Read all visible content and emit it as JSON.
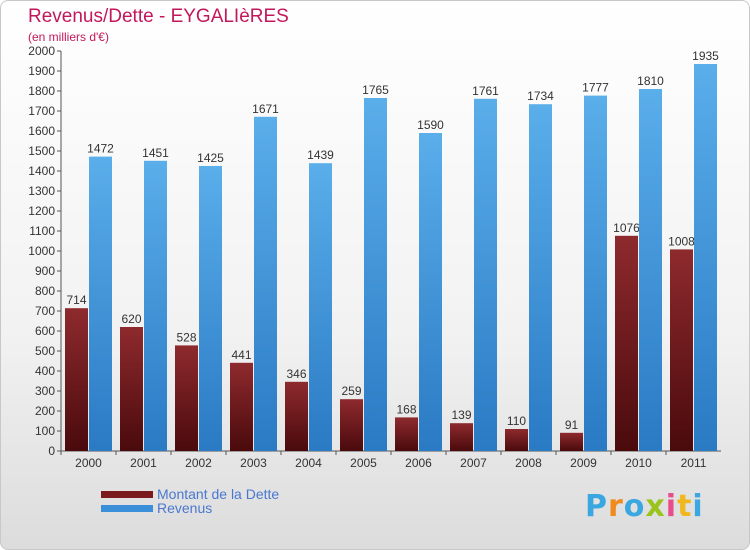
{
  "chart": {
    "title": "Revenus/Dette - EYGALIèRES",
    "subtitle": "(en milliers d'€)"
  },
  "chart_data": {
    "type": "bar",
    "categories": [
      "2000",
      "2001",
      "2002",
      "2003",
      "2004",
      "2005",
      "2006",
      "2007",
      "2008",
      "2009",
      "2010",
      "2011"
    ],
    "series": [
      {
        "name": "Montant de la Dette",
        "color": "#7a1a1e",
        "values": [
          714,
          620,
          528,
          441,
          346,
          259,
          168,
          139,
          110,
          91,
          1076,
          1008
        ]
      },
      {
        "name": "Revenus",
        "color": "#3b8fd8",
        "values": [
          1472,
          1451,
          1425,
          1671,
          1439,
          1765,
          1590,
          1761,
          1734,
          1777,
          1810,
          1935
        ]
      }
    ],
    "ylim": [
      0,
      2000
    ],
    "ytick_step": 100,
    "grid": false,
    "legend_position": "bottom-left"
  },
  "logo": {
    "letters": [
      "P",
      "r",
      "o",
      "x",
      "i",
      "t",
      "i"
    ],
    "colors": [
      "#3aa7e0",
      "#f08a1c",
      "#3aa7e0",
      "#9ac31c",
      "#e84c8a",
      "#f0b81c",
      "#3aa7e0"
    ]
  }
}
